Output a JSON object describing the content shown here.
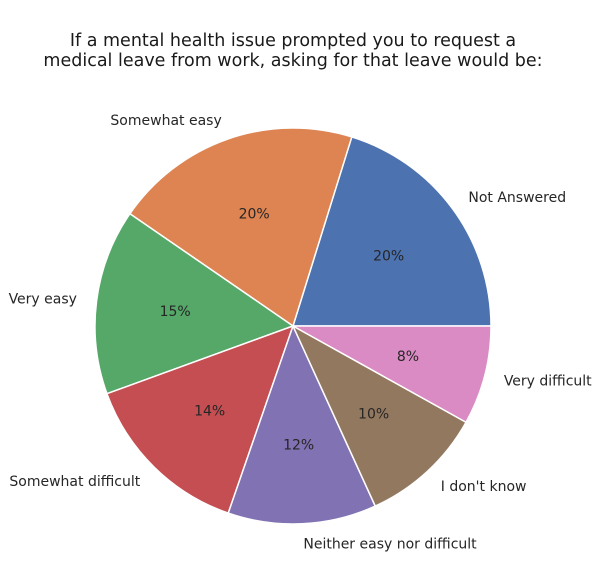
{
  "chart_data": {
    "type": "pie",
    "title_lines": [
      "If a mental health issue prompted you to request a",
      "medical leave from work, asking for that leave would be:"
    ],
    "slices": [
      {
        "label": "Not Answered",
        "value": 20,
        "pct_label": "20%",
        "color": "#4c72b0"
      },
      {
        "label": "Somewhat easy",
        "value": 20,
        "pct_label": "20%",
        "color": "#dd8452"
      },
      {
        "label": "Very easy",
        "value": 15,
        "pct_label": "15%",
        "color": "#55a868"
      },
      {
        "label": "Somewhat difficult",
        "value": 14,
        "pct_label": "14%",
        "color": "#c44e52"
      },
      {
        "label": "Neither easy nor difficult",
        "value": 12,
        "pct_label": "12%",
        "color": "#8172b3"
      },
      {
        "label": "I don't know",
        "value": 10,
        "pct_label": "10%",
        "color": "#937860"
      },
      {
        "label": "Very difficult",
        "value": 8,
        "pct_label": "8%",
        "color": "#da8bc3"
      }
    ],
    "start_angle": "0 degrees (3 o'clock), counter-clockwise",
    "legend": "none"
  }
}
